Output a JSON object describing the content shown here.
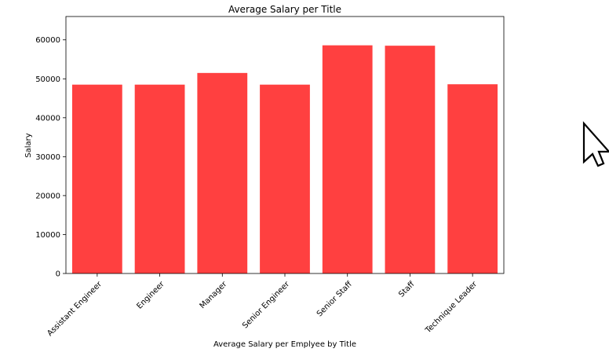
{
  "chart_data": {
    "type": "bar",
    "title": "Average Salary per Title",
    "xlabel": "Average Salary per Emplyee by Title",
    "ylabel": "Salary",
    "categories": [
      "Assistant Engineer",
      "Engineer",
      "Manager",
      "Senior Engineer",
      "Senior Staff",
      "Staff",
      "Technique Leader"
    ],
    "values": [
      48500,
      48500,
      51500,
      48500,
      58600,
      58500,
      48600
    ],
    "ylim": [
      0,
      66000
    ],
    "yticks": [
      0,
      10000,
      20000,
      30000,
      40000,
      50000,
      60000
    ],
    "ytick_labels": [
      "0",
      "10000",
      "20000",
      "30000",
      "40000",
      "50000",
      "60000"
    ],
    "bar_color": "#ff4040",
    "grid": false,
    "legend": false
  },
  "cursor": {
    "icon": "mouse-pointer-icon"
  }
}
